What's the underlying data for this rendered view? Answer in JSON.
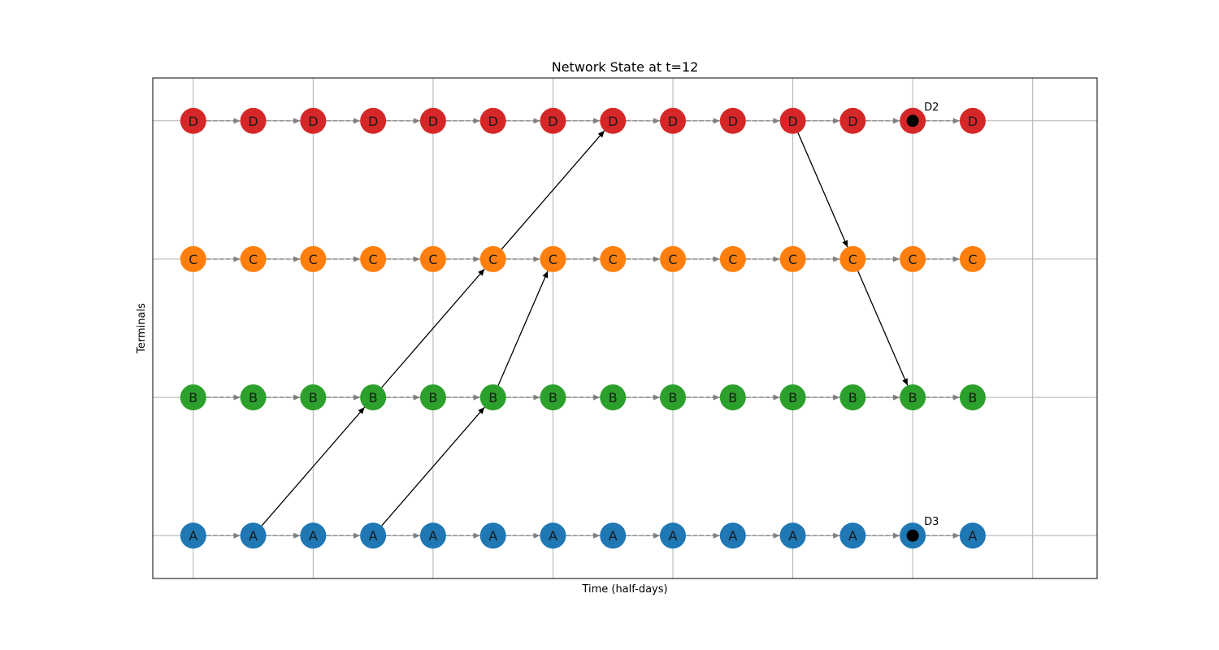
{
  "chart_data": {
    "type": "diagram",
    "title": "Network State at t=12",
    "xlabel": "Time (half-days)",
    "ylabel": "Terminals",
    "grid": true,
    "xlim": [
      -0.675,
      15.075
    ],
    "ylim": [
      -0.31,
      3.31
    ],
    "x_gridlines": [
      0,
      2,
      4,
      6,
      8,
      10,
      12,
      14
    ],
    "terminals": [
      {
        "name": "A",
        "y": 0,
        "color": "#1f77b4"
      },
      {
        "name": "B",
        "y": 1,
        "color": "#2ca02c"
      },
      {
        "name": "C",
        "y": 2,
        "color": "#ff7f0e"
      },
      {
        "name": "D",
        "y": 3,
        "color": "#d62728"
      }
    ],
    "times": [
      0,
      1,
      2,
      3,
      4,
      5,
      6,
      7,
      8,
      9,
      10,
      11,
      12,
      13
    ],
    "hold_edge_color": "#808080",
    "move_edge_color": "#000000",
    "movement_edges": [
      {
        "from": "A",
        "t0": 1,
        "to": "B",
        "t1": 3
      },
      {
        "from": "B",
        "t0": 3,
        "to": "C",
        "t1": 5
      },
      {
        "from": "C",
        "t0": 5,
        "to": "D",
        "t1": 7
      },
      {
        "from": "A",
        "t0": 3,
        "to": "B",
        "t1": 5
      },
      {
        "from": "B",
        "t0": 5,
        "to": "C",
        "t1": 6
      },
      {
        "from": "D",
        "t0": 10,
        "to": "C",
        "t1": 11
      },
      {
        "from": "C",
        "t0": 11,
        "to": "B",
        "t1": 12
      }
    ],
    "annotations": [
      {
        "terminal": "D",
        "t": 12,
        "label": "D2"
      },
      {
        "terminal": "A",
        "t": 12,
        "label": "D3"
      }
    ]
  }
}
